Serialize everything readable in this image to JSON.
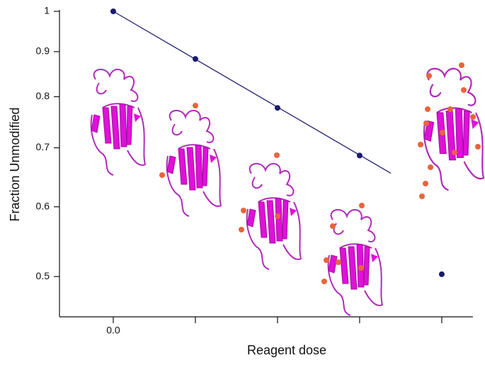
{
  "chart_data": {
    "type": "scatter",
    "xlabel": "Reagent dose",
    "ylabel": "Fraction Unmodified",
    "ylog": true,
    "xlim": [
      -0.655,
      4.38
    ],
    "ylim": [
      0.45,
      1
    ],
    "xticks": [
      {
        "value": 0,
        "label": "0.0"
      },
      {
        "value": 1,
        "label": null
      },
      {
        "value": 2,
        "label": null
      },
      {
        "value": 3,
        "label": null
      },
      {
        "value": 4,
        "label": null
      }
    ],
    "yticks": [
      0.5,
      0.6,
      0.7,
      0.8,
      0.9,
      1
    ],
    "series": [
      {
        "style": "markers",
        "color": "#1a1a6e",
        "x": [
          0,
          1,
          2,
          3,
          4
        ],
        "values": [
          1,
          0.883,
          0.777,
          0.686,
          0.503
        ]
      },
      {
        "style": "line",
        "color": "#1f1f6e",
        "x": [
          0,
          3.38
        ],
        "values": [
          1,
          0.655
        ]
      }
    ]
  }
}
